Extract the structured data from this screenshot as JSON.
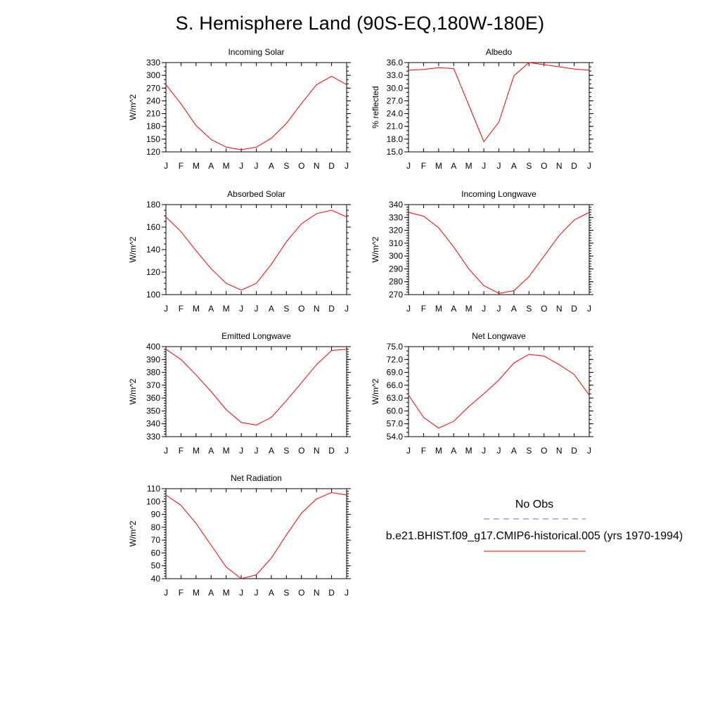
{
  "page": {
    "title": "S. Hemisphere Land (90S-EQ,180W-180E)"
  },
  "legend": {
    "obs_label": "No Obs",
    "obs_color": "#6a6aff",
    "model_label": "b.e21.BHIST.f09_g17.CMIP6-historical.005 (yrs 1970-1994)",
    "model_color": "#ff0000"
  },
  "chart_data": [
    {
      "type": "line",
      "title": "Incoming Solar",
      "xlabel": "",
      "ylabel": "W/m^2",
      "categories": [
        "J",
        "F",
        "M",
        "A",
        "M",
        "J",
        "J",
        "A",
        "S",
        "O",
        "N",
        "D",
        "J"
      ],
      "ylim": [
        120,
        330
      ],
      "yticks": [
        120,
        150,
        180,
        210,
        240,
        270,
        300,
        330
      ],
      "ytick_labels": [
        "120",
        "150",
        "180",
        "210",
        "240",
        "270",
        "300",
        "330"
      ],
      "yminor_step": 10,
      "series": [
        {
          "name": "b.e21.BHIST.f09_g17.CMIP6-historical.005",
          "color": "#ff0000",
          "values": [
            278,
            233,
            182,
            149,
            131,
            125,
            131,
            152,
            187,
            234,
            278,
            298,
            278
          ]
        }
      ]
    },
    {
      "type": "line",
      "title": "Albedo",
      "xlabel": "",
      "ylabel": "% reflected",
      "categories": [
        "J",
        "F",
        "M",
        "A",
        "M",
        "J",
        "J",
        "A",
        "S",
        "O",
        "N",
        "D",
        "J"
      ],
      "ylim": [
        15,
        36
      ],
      "yticks": [
        15,
        18,
        21,
        24,
        27,
        30,
        33,
        36
      ],
      "ytick_labels": [
        "15.0",
        "18.0",
        "21.0",
        "24.0",
        "27.0",
        "30.0",
        "33.0",
        "36.0"
      ],
      "yminor_step": 1,
      "series": [
        {
          "name": "b.e21.BHIST.f09_g17.CMIP6-historical.005",
          "color": "#ff0000",
          "values": [
            34.2,
            34.4,
            34.8,
            34.6,
            26.0,
            17.4,
            22.0,
            32.9,
            36.0,
            35.5,
            35.0,
            34.5,
            34.2
          ]
        }
      ]
    },
    {
      "type": "line",
      "title": "Absorbed Solar",
      "xlabel": "",
      "ylabel": "W/m^2",
      "categories": [
        "J",
        "F",
        "M",
        "A",
        "M",
        "J",
        "J",
        "A",
        "S",
        "O",
        "N",
        "D",
        "J"
      ],
      "ylim": [
        100,
        180
      ],
      "yticks": [
        100,
        120,
        140,
        160,
        180
      ],
      "ytick_labels": [
        "100",
        "120",
        "140",
        "160",
        "180"
      ],
      "yminor_step": 5,
      "series": [
        {
          "name": "b.e21.BHIST.f09_g17.CMIP6-historical.005",
          "color": "#ff0000",
          "values": [
            169,
            156,
            139,
            123,
            110,
            104,
            110,
            127,
            147,
            163,
            172,
            175,
            169
          ]
        }
      ]
    },
    {
      "type": "line",
      "title": "Incoming Longwave",
      "xlabel": "",
      "ylabel": "W/m^2",
      "categories": [
        "J",
        "F",
        "M",
        "A",
        "M",
        "J",
        "J",
        "A",
        "S",
        "O",
        "N",
        "D",
        "J"
      ],
      "ylim": [
        270,
        340
      ],
      "yticks": [
        270,
        280,
        290,
        300,
        310,
        320,
        330,
        340
      ],
      "ytick_labels": [
        "270",
        "280",
        "290",
        "300",
        "310",
        "320",
        "330",
        "340"
      ],
      "yminor_step": 2,
      "series": [
        {
          "name": "b.e21.BHIST.f09_g17.CMIP6-historical.005",
          "color": "#ff0000",
          "values": [
            334,
            331,
            322,
            307,
            290,
            277,
            271,
            273,
            284,
            300,
            316,
            328,
            334
          ]
        }
      ]
    },
    {
      "type": "line",
      "title": "Emitted Longwave",
      "xlabel": "",
      "ylabel": "W/m^2",
      "categories": [
        "J",
        "F",
        "M",
        "A",
        "M",
        "J",
        "J",
        "A",
        "S",
        "O",
        "N",
        "D",
        "J"
      ],
      "ylim": [
        330,
        400
      ],
      "yticks": [
        330,
        340,
        350,
        360,
        370,
        380,
        390,
        400
      ],
      "ytick_labels": [
        "330",
        "340",
        "350",
        "360",
        "370",
        "380",
        "390",
        "400"
      ],
      "yminor_step": 2,
      "series": [
        {
          "name": "b.e21.BHIST.f09_g17.CMIP6-historical.005",
          "color": "#ff0000",
          "values": [
            398,
            390,
            378,
            365,
            351,
            341,
            339,
            345,
            358,
            372,
            386,
            397,
            398
          ]
        }
      ]
    },
    {
      "type": "line",
      "title": "Net Longwave",
      "xlabel": "",
      "ylabel": "W/m^2",
      "categories": [
        "J",
        "F",
        "M",
        "A",
        "M",
        "J",
        "J",
        "A",
        "S",
        "O",
        "N",
        "D",
        "J"
      ],
      "ylim": [
        54,
        75
      ],
      "yticks": [
        54,
        57,
        60,
        63,
        66,
        69,
        72,
        75
      ],
      "ytick_labels": [
        "54.0",
        "57.0",
        "60.0",
        "63.0",
        "66.0",
        "69.0",
        "72.0",
        "75.0"
      ],
      "yminor_step": 1,
      "series": [
        {
          "name": "b.e21.BHIST.f09_g17.CMIP6-historical.005",
          "color": "#ff0000",
          "values": [
            63.7,
            58.5,
            56.0,
            57.6,
            61.0,
            64.0,
            67.2,
            71.2,
            73.2,
            72.8,
            70.8,
            68.5,
            63.7
          ]
        }
      ]
    },
    {
      "type": "line",
      "title": "Net Radiation",
      "xlabel": "",
      "ylabel": "W/m^2",
      "categories": [
        "J",
        "F",
        "M",
        "A",
        "M",
        "J",
        "J",
        "A",
        "S",
        "O",
        "N",
        "D",
        "J"
      ],
      "ylim": [
        40,
        110
      ],
      "yticks": [
        40,
        50,
        60,
        70,
        80,
        90,
        100,
        110
      ],
      "ytick_labels": [
        "40",
        "50",
        "60",
        "70",
        "80",
        "90",
        "100",
        "110"
      ],
      "yminor_step": 2,
      "series": [
        {
          "name": "b.e21.BHIST.f09_g17.CMIP6-historical.005",
          "color": "#ff0000",
          "values": [
            105,
            97,
            83,
            66,
            49,
            40,
            43,
            56,
            74,
            91,
            102,
            107,
            105
          ]
        }
      ]
    }
  ]
}
